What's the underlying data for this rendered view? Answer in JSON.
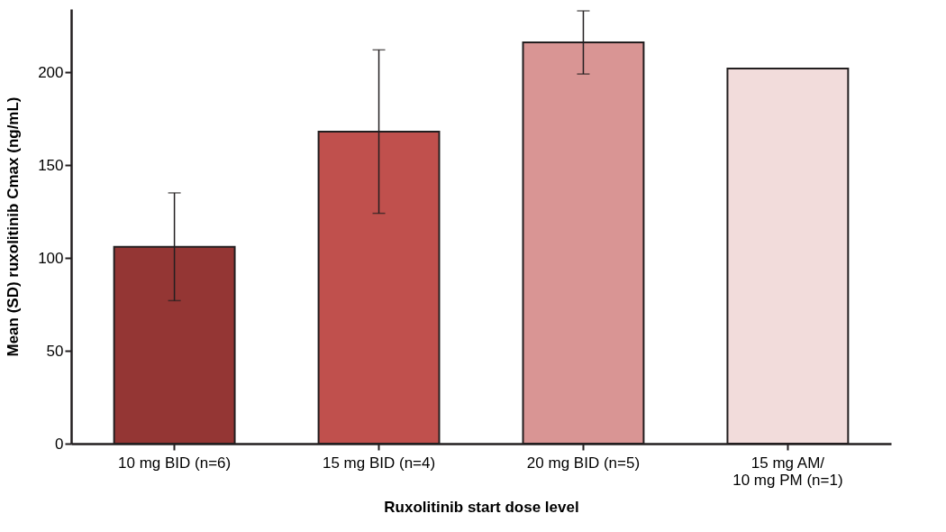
{
  "chart_data": {
    "type": "bar",
    "categories": [
      "10 mg BID (n=6)",
      "15 mg BID (n=4)",
      "20 mg BID (n=5)",
      "15 mg AM/\n10 mg PM (n=1)"
    ],
    "values": [
      106,
      168,
      216,
      202
    ],
    "errors": [
      29,
      44,
      17,
      null
    ],
    "colors": [
      "#943634",
      "#c0504d",
      "#d99594",
      "#f2dcdb"
    ],
    "xlabel": "Ruxolitinib start dose level",
    "ylabel": "Mean (SD) ruxolitinib Cmax (ng/mL)",
    "ylim": [
      0,
      234
    ],
    "yticks": [
      0,
      50,
      100,
      150,
      200
    ],
    "grid": false,
    "legend": false
  }
}
